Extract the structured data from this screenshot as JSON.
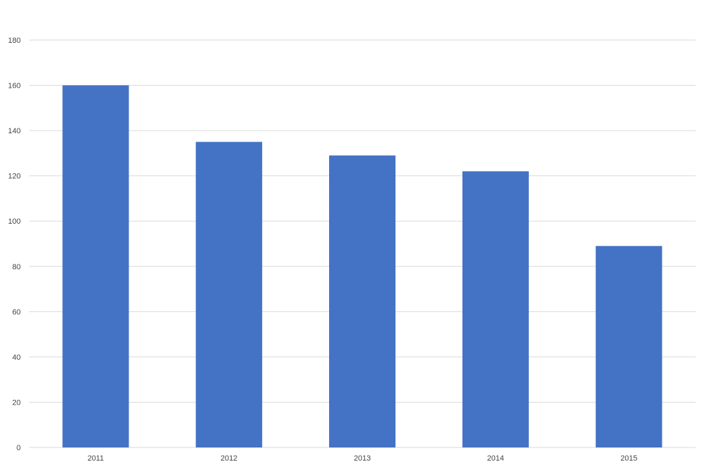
{
  "chart_data": {
    "type": "bar",
    "categories": [
      "2011",
      "2012",
      "2013",
      "2014",
      "2015"
    ],
    "values": [
      160,
      135,
      129,
      122,
      89
    ],
    "title": "",
    "xlabel": "",
    "ylabel": "",
    "ylim": [
      0,
      180
    ],
    "yticks": [
      0,
      20,
      40,
      60,
      80,
      100,
      120,
      140,
      160,
      180
    ],
    "grid": true,
    "legend": "none"
  },
  "colors": {
    "bar": "#4472C4",
    "grid": "#d9d9d9",
    "axis_text": "#444444"
  }
}
